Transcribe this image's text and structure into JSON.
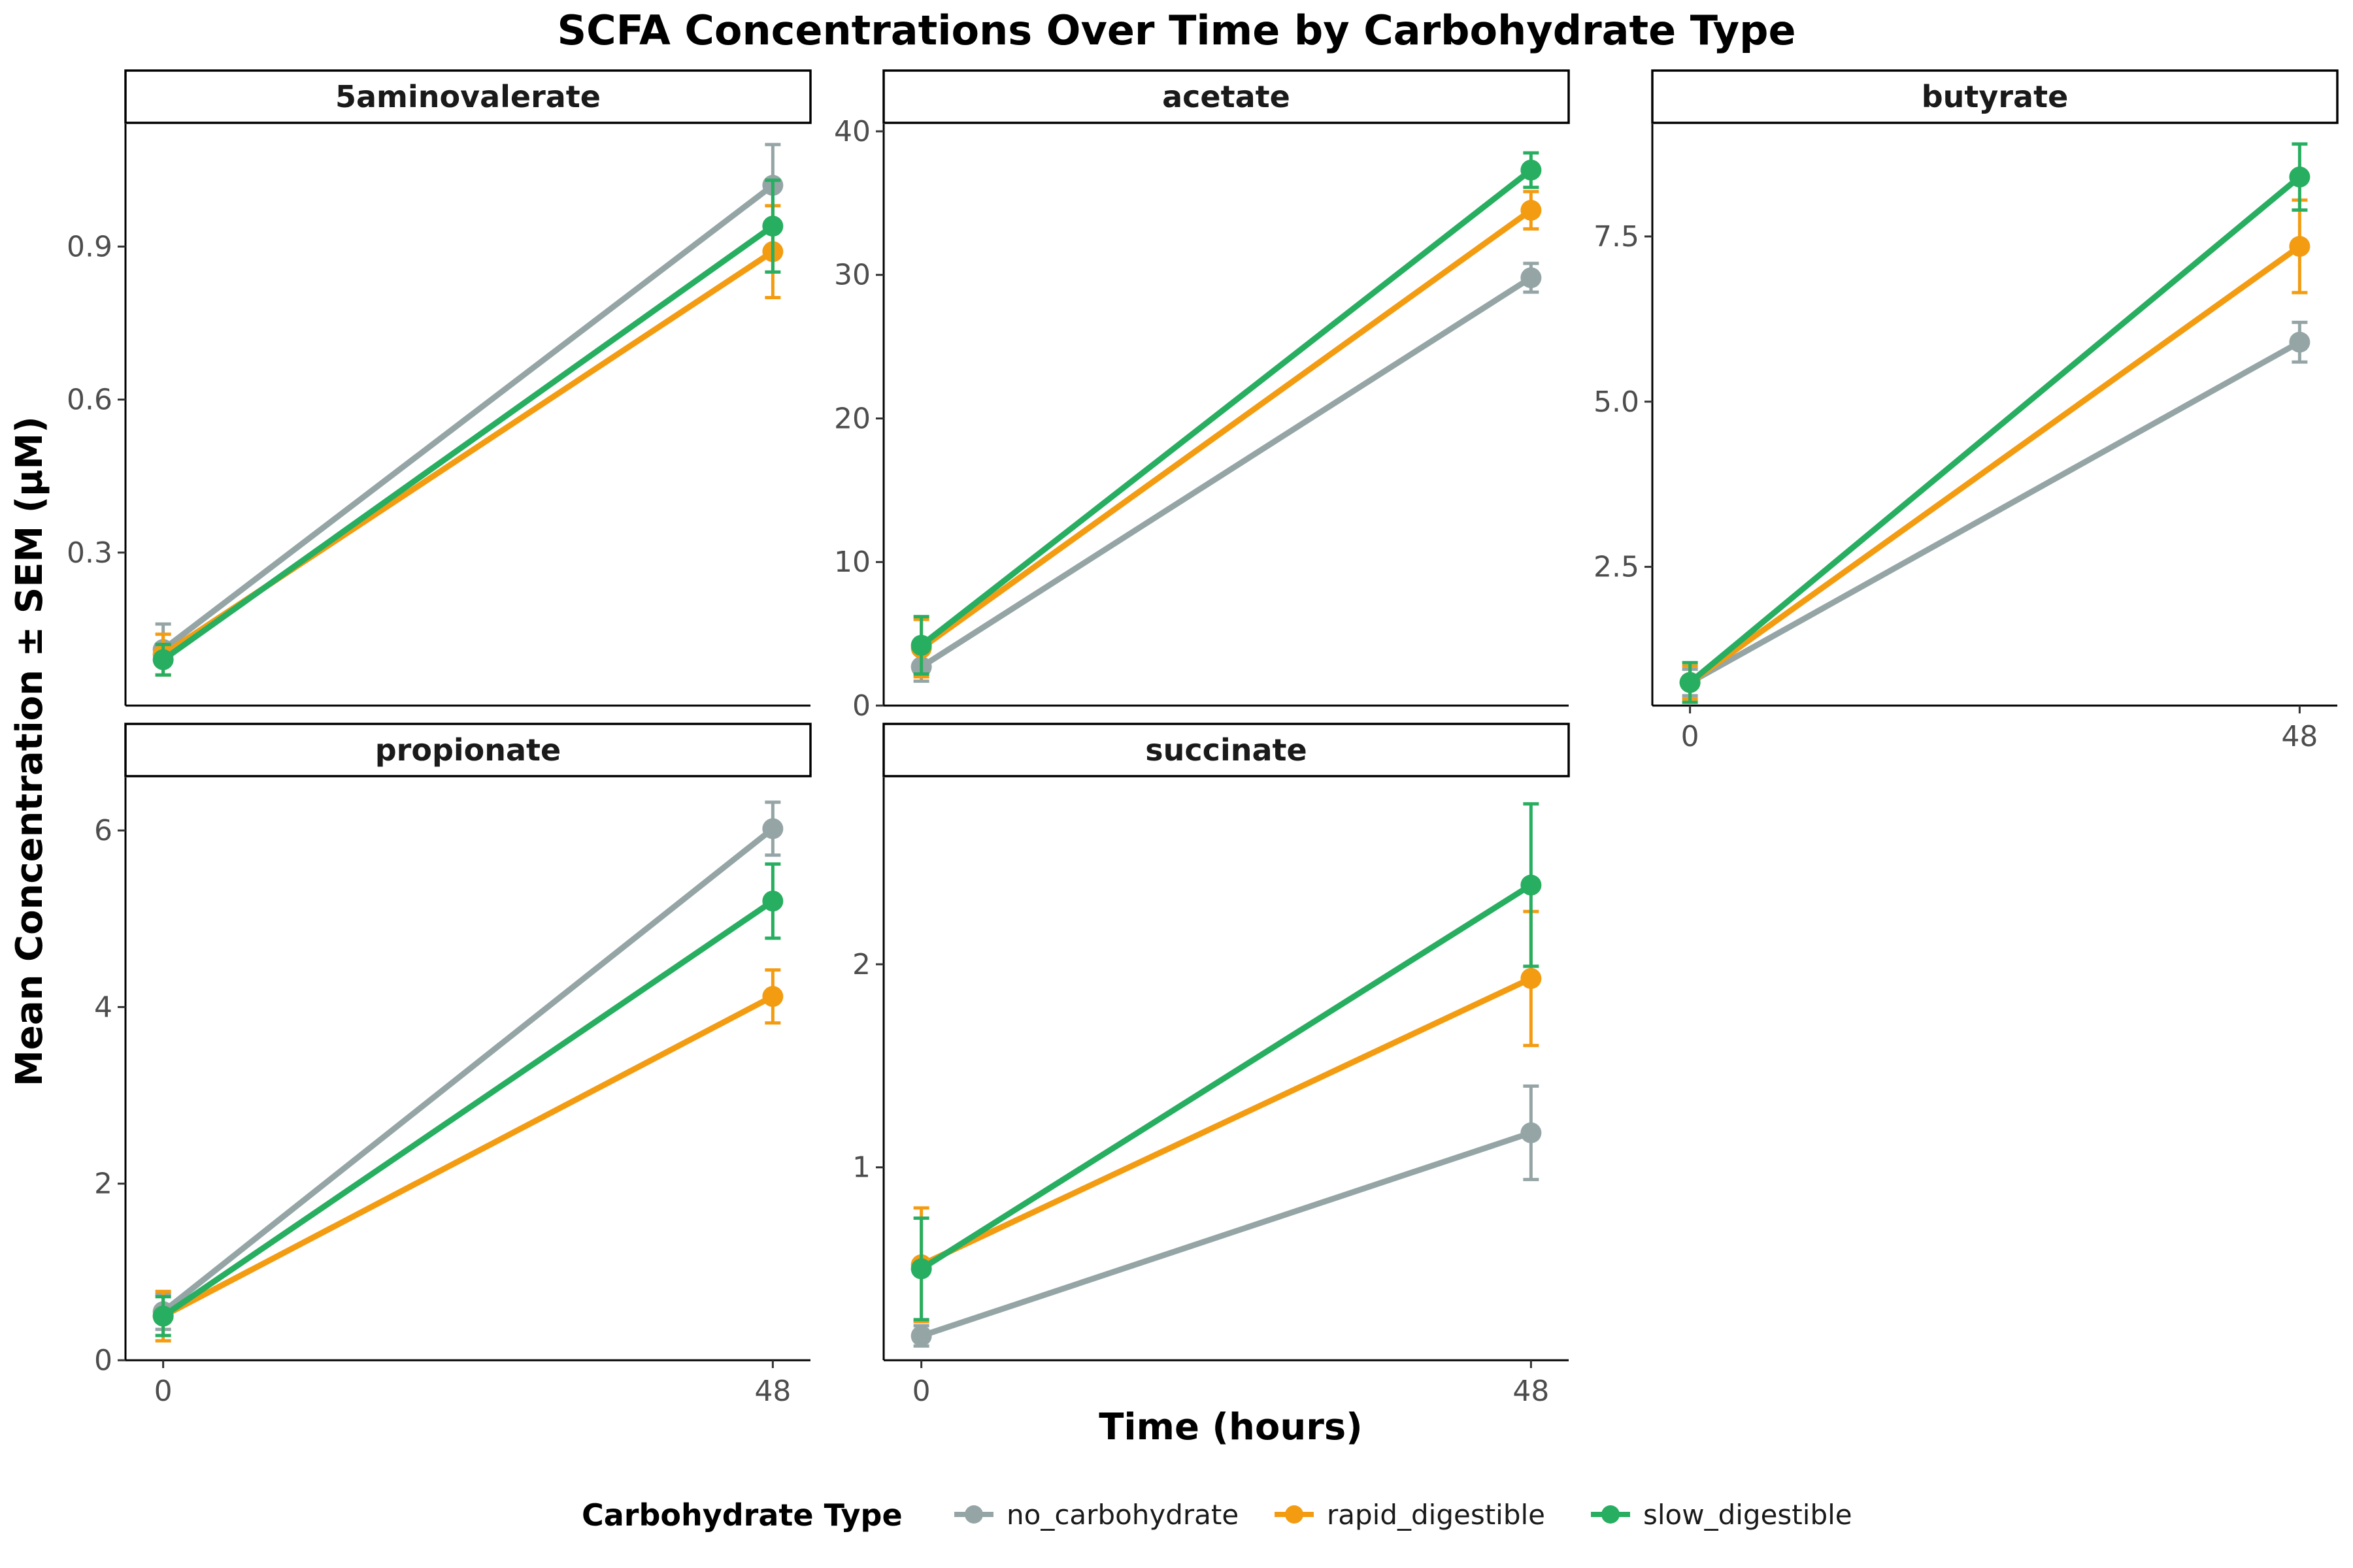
{
  "chart_data": {
    "type": "line",
    "title": "SCFA Concentrations Over Time by Carbohydrate Type",
    "xlabel": "Time (hours)",
    "ylabel": "Mean Concentration ± SEM (µM)",
    "x": [
      0,
      48
    ],
    "x_tick_labels": [
      "0",
      "48"
    ],
    "legend": {
      "title": "Carbohydrate Type",
      "placement": "bottom",
      "entries": [
        "no_carbohydrate",
        "rapid_digestible",
        "slow_digestible"
      ]
    },
    "colors": {
      "no_carbohydrate": "#95a5a6",
      "rapid_digestible": "#f39c12",
      "slow_digestible": "#27ae60"
    },
    "grid": false,
    "facets": [
      {
        "name": "5aminovalerate",
        "ylim": [
          0.0,
          1.14
        ],
        "yticks": [
          0.3,
          0.6,
          0.9
        ],
        "ytick_labels": [
          "0.3",
          "0.6",
          "0.9"
        ],
        "series": [
          {
            "name": "no_carbohydrate",
            "values": [
              0.11,
              1.02
            ],
            "sem": [
              0.05,
              0.08
            ]
          },
          {
            "name": "rapid_digestible",
            "values": [
              0.1,
              0.89
            ],
            "sem": [
              0.04,
              0.09
            ]
          },
          {
            "name": "slow_digestible",
            "values": [
              0.09,
              0.94
            ],
            "sem": [
              0.03,
              0.09
            ]
          }
        ]
      },
      {
        "name": "acetate",
        "ylim": [
          0,
          40.5
        ],
        "yticks": [
          0,
          10,
          20,
          30,
          40
        ],
        "ytick_labels": [
          "0",
          "10",
          "20",
          "30",
          "40"
        ],
        "series": [
          {
            "name": "no_carbohydrate",
            "values": [
              2.7,
              29.8
            ],
            "sem": [
              1.0,
              1.0
            ]
          },
          {
            "name": "rapid_digestible",
            "values": [
              4.0,
              34.5
            ],
            "sem": [
              2.0,
              1.3
            ]
          },
          {
            "name": "slow_digestible",
            "values": [
              4.2,
              37.3
            ],
            "sem": [
              2.0,
              1.2
            ]
          }
        ]
      },
      {
        "name": "butyrate",
        "ylim": [
          0.4,
          9.2
        ],
        "yticks": [
          2.5,
          5.0,
          7.5
        ],
        "ytick_labels": [
          "2.5",
          "5.0",
          "7.5"
        ],
        "series": [
          {
            "name": "no_carbohydrate",
            "values": [
              0.75,
              5.9
            ],
            "sem": [
              0.2,
              0.3
            ]
          },
          {
            "name": "rapid_digestible",
            "values": [
              0.75,
              7.35
            ],
            "sem": [
              0.25,
              0.7
            ]
          },
          {
            "name": "slow_digestible",
            "values": [
              0.75,
              8.4
            ],
            "sem": [
              0.3,
              0.5
            ]
          }
        ]
      },
      {
        "name": "propionate",
        "ylim": [
          0,
          6.6
        ],
        "yticks": [
          0,
          2,
          4,
          6
        ],
        "ytick_labels": [
          "0",
          "2",
          "4",
          "6"
        ],
        "series": [
          {
            "name": "no_carbohydrate",
            "values": [
              0.55,
              6.02
            ],
            "sem": [
              0.2,
              0.3
            ]
          },
          {
            "name": "rapid_digestible",
            "values": [
              0.5,
              4.12
            ],
            "sem": [
              0.28,
              0.3
            ]
          },
          {
            "name": "slow_digestible",
            "values": [
              0.5,
              5.2
            ],
            "sem": [
              0.22,
              0.42
            ]
          }
        ]
      },
      {
        "name": "succinate",
        "ylim": [
          0.05,
          2.92
        ],
        "yticks": [
          1,
          2
        ],
        "ytick_labels": [
          "1",
          "2"
        ],
        "series": [
          {
            "name": "no_carbohydrate",
            "values": [
              0.17,
              1.17
            ],
            "sem": [
              0.05,
              0.23
            ]
          },
          {
            "name": "rapid_digestible",
            "values": [
              0.52,
              1.93
            ],
            "sem": [
              0.28,
              0.33
            ]
          },
          {
            "name": "slow_digestible",
            "values": [
              0.5,
              2.39
            ],
            "sem": [
              0.25,
              0.4
            ]
          }
        ]
      }
    ]
  }
}
